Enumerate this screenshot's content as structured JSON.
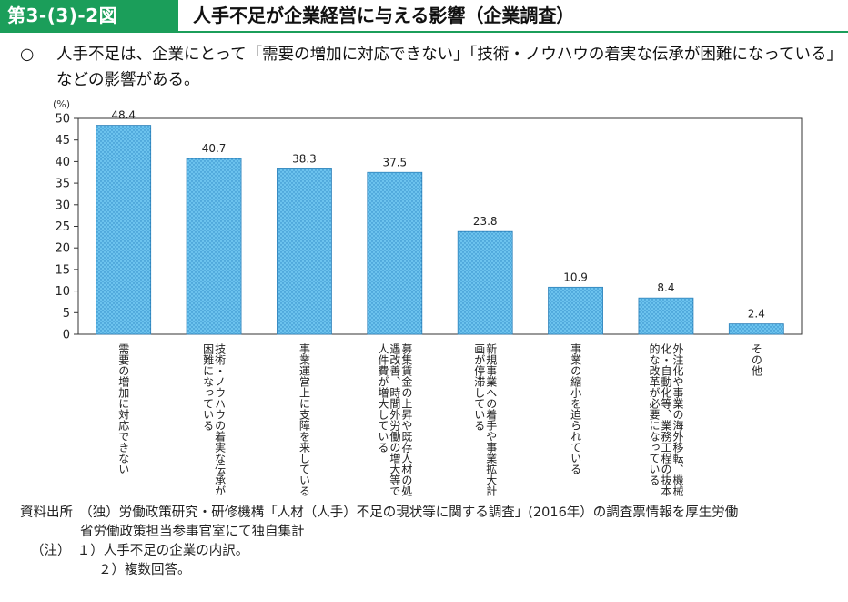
{
  "header": {
    "number": "第3-(3)-2図",
    "title": "人手不足が企業経営に与える影響（企業調査）"
  },
  "summary": {
    "mark": "○",
    "text": "人手不足は、企業にとって「需要の増加に対応できない」「技術・ノウハウの着実な伝承が困難になっている」などの影響がある。"
  },
  "colors": {
    "accent": "#1b9e5a",
    "bar_fill": "#5bb8e8",
    "bar_stroke": "#2a7fb8"
  },
  "chart_data": {
    "type": "bar",
    "unit": "(%)",
    "ylim": [
      0,
      50
    ],
    "yticks": [
      0,
      5,
      10,
      15,
      20,
      25,
      30,
      35,
      40,
      45,
      50
    ],
    "grid": false,
    "categories": [
      "需要の増加に対応できない",
      "技術・ノウハウの着実な伝承が困難になっている",
      "事業運営上に支障を来している",
      "募集賃金の上昇や既存人材の処遇改善、時間外労働の増大等で人件費が増大している",
      "新規事業への着手や事業拡大計画が停滞している",
      "事業の縮小を迫られている",
      "外注化や事業の海外移転、機械化・自動化等、業務工程の抜本的な改革が必要になっている",
      "その他"
    ],
    "category_lines": [
      [
        "需要の増加に対応できない"
      ],
      [
        "技術・ノウハウの着実な伝承が",
        "困難になっている"
      ],
      [
        "事業運営上に支障を来している"
      ],
      [
        "募集賃金の上昇や既存人材の処",
        "遇改善、時間外労働の増大等で",
        "人件費が増大している"
      ],
      [
        "新規事業への着手や事業拡大計",
        "画が停滞している"
      ],
      [
        "事業の縮小を迫られている"
      ],
      [
        "外注化や事業の海外移転、機械",
        "化・自動化等、業務工程の抜本",
        "的な改革が必要になっている"
      ],
      [
        "その他"
      ]
    ],
    "values": [
      48.4,
      40.7,
      38.3,
      37.5,
      23.8,
      10.9,
      8.4,
      2.4
    ],
    "value_labels": [
      "48.4",
      "40.7",
      "38.3",
      "37.5",
      "23.8",
      "10.9",
      "8.4",
      "2.4"
    ]
  },
  "notes": {
    "source_1": "資料出所　（独）労働政策研究・研修機構「人材（人手）不足の現状等に関する調査」(2016年）の調査票情報を厚生労働",
    "source_2": "省労働政策担当参事官室にて独自集計",
    "note_1": "（注）　１）人手不足の企業の内訳。",
    "note_2": "２）複数回答。"
  }
}
